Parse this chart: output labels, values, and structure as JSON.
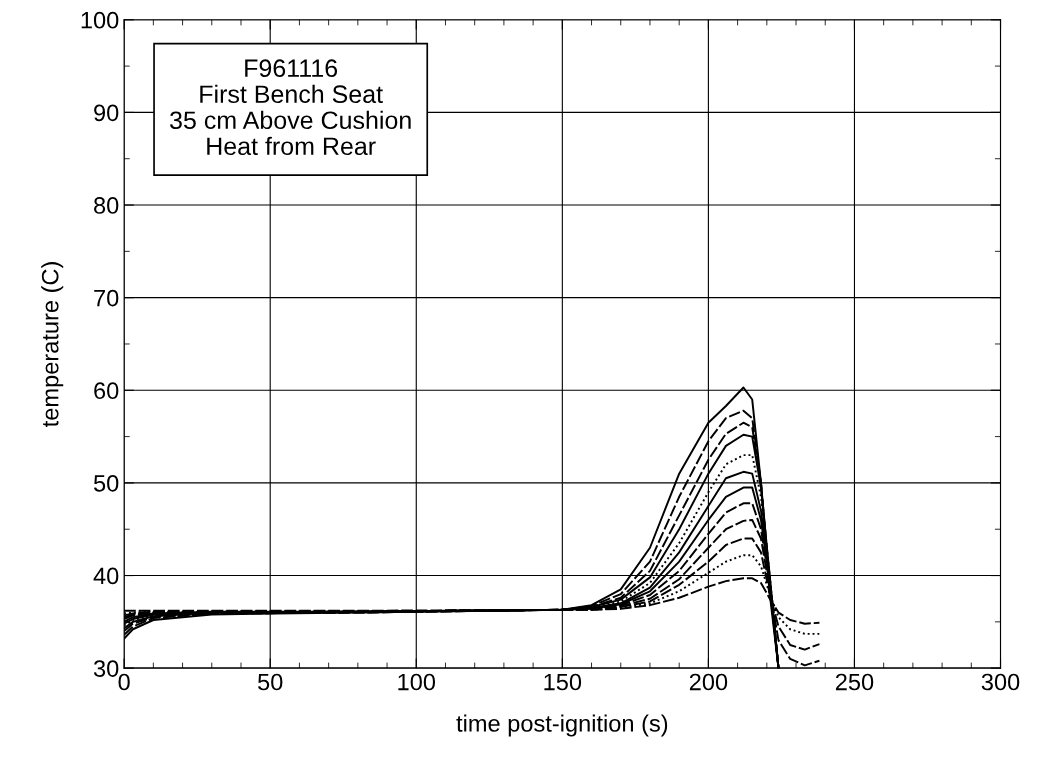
{
  "chart_data": {
    "type": "line",
    "xlabel": "time post-ignition (s)",
    "ylabel": "temperature (C)",
    "annotations": [
      "F961116\nFirst Bench Seat\n35 cm Above Cushion\nHeat from Rear"
    ],
    "x": [
      0,
      3,
      10,
      30,
      80,
      150,
      160,
      170,
      180,
      190,
      200,
      206,
      212,
      215,
      218,
      221,
      224,
      228,
      233,
      238
    ],
    "xlim": [
      0,
      300
    ],
    "xticks": [
      0,
      50,
      100,
      150,
      200,
      250,
      300
    ],
    "ylim": [
      30,
      100
    ],
    "yticks": [
      30,
      40,
      50,
      60,
      70,
      80,
      90,
      100
    ],
    "grid": true,
    "legend": false,
    "marker": "none",
    "series": [
      {
        "color": "#000000",
        "line_style": "solid",
        "values": [
          33.2,
          34.2,
          35.2,
          35.8,
          36,
          36.3,
          36.8,
          38.5,
          43,
          51,
          56.5,
          58.3,
          60.3,
          59,
          50,
          38,
          30,
          null,
          null,
          null
        ]
      },
      {
        "color": "#000000",
        "line_style": "dashed",
        "values": [
          33.6,
          34.5,
          35.4,
          35.9,
          36,
          36.3,
          36.7,
          38,
          41.5,
          48.5,
          54.5,
          57,
          57.8,
          57,
          50,
          39,
          30,
          null,
          null,
          null
        ]
      },
      {
        "color": "#000000",
        "line_style": "dashed",
        "values": [
          34,
          34.8,
          35.5,
          35.9,
          36,
          36.3,
          36.6,
          37.6,
          40.5,
          46.5,
          52.5,
          55.3,
          56.5,
          56,
          50,
          39.5,
          30,
          null,
          null,
          null
        ]
      },
      {
        "color": "#000000",
        "line_style": "solid",
        "values": [
          34.3,
          35,
          35.6,
          36,
          36.1,
          36.3,
          36.6,
          37.4,
          39.8,
          45,
          51,
          54,
          55.2,
          55,
          49.5,
          40,
          30,
          null,
          null,
          null
        ]
      },
      {
        "color": "#000000",
        "line_style": "dotted",
        "values": [
          34.6,
          35.2,
          35.7,
          36,
          36.1,
          36.3,
          36.5,
          37.2,
          39.2,
          43.5,
          49,
          52,
          53,
          53,
          48.5,
          40,
          30,
          null,
          null,
          null
        ]
      },
      {
        "color": "#000000",
        "line_style": "solid",
        "values": [
          34.8,
          35.3,
          35.8,
          36,
          36.1,
          36.3,
          36.5,
          37,
          38.7,
          42.5,
          47.5,
          50.5,
          51.2,
          51,
          47,
          39.5,
          30,
          null,
          null,
          null
        ]
      },
      {
        "color": "#000000",
        "line_style": "solid",
        "values": [
          35,
          35.5,
          35.9,
          36.1,
          36.1,
          36.3,
          36.4,
          36.9,
          38.3,
          41.5,
          46,
          48.5,
          49.5,
          49.5,
          46,
          39,
          30,
          null,
          null,
          null
        ]
      },
      {
        "color": "#000000",
        "line_style": "dashed",
        "values": [
          35.3,
          35.7,
          36,
          36.1,
          36.1,
          36.3,
          36.4,
          36.8,
          37.9,
          40.5,
          44.5,
          46.8,
          47.8,
          47.8,
          45,
          39,
          30,
          null,
          null,
          null
        ]
      },
      {
        "color": "#000000",
        "line_style": "dashed",
        "values": [
          35.5,
          35.8,
          36,
          36.1,
          36.1,
          36.3,
          36.4,
          36.7,
          37.5,
          39.6,
          43,
          45,
          45.9,
          46,
          44,
          38.5,
          33,
          31,
          30.3,
          30.8
        ]
      },
      {
        "color": "#000000",
        "line_style": "dashed",
        "values": [
          35.7,
          35.9,
          36.1,
          36.1,
          36.1,
          36.3,
          36.3,
          36.6,
          37.2,
          39,
          41.5,
          43.3,
          44,
          44,
          42.5,
          38,
          34.5,
          32.5,
          32,
          32.6
        ]
      },
      {
        "color": "#000000",
        "line_style": "dotted",
        "values": [
          35.9,
          36,
          36.1,
          36.1,
          36.1,
          36.3,
          36.3,
          36.5,
          37,
          38.3,
          40.3,
          41.5,
          42.2,
          42.2,
          41,
          38,
          35.5,
          34.2,
          33.7,
          33.7
        ]
      },
      {
        "color": "#000000",
        "line_style": "dashed",
        "values": [
          36.2,
          36.2,
          36.2,
          36.2,
          36.2,
          36.3,
          36.3,
          36.4,
          36.8,
          37.6,
          38.8,
          39.4,
          39.7,
          39.7,
          39.2,
          37.5,
          36,
          35.2,
          34.8,
          34.9
        ]
      }
    ]
  }
}
